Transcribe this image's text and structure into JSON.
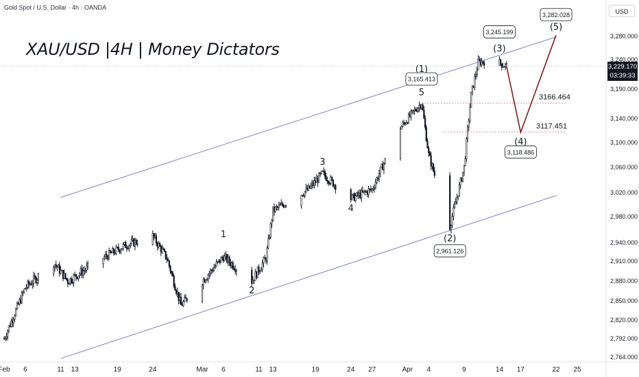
{
  "header": {
    "symbol_line": "Gold Spot / U.S. Dollar · 4h · OANDA",
    "currency_button": "USD"
  },
  "title": "XAU/USD |4H | Money Dictators",
  "current_price": {
    "price": "3,229.170",
    "countdown": "03:39:33"
  },
  "colors": {
    "candle": "#131722",
    "channel": "#7b83c7",
    "projection": "#7a1f1f",
    "level": "#e06060",
    "axis_text": "#131722"
  },
  "chart_data": {
    "type": "candlestick",
    "title": "XAU/USD |4H | Money Dictators",
    "xlabel": "",
    "ylabel": "",
    "x_tick_labels": [
      "Feb",
      "6",
      "11",
      "13",
      "19",
      "24",
      "Mar",
      "6",
      "11",
      "13",
      "19",
      "24",
      "27",
      "Apr",
      "4",
      "9",
      "14",
      "17",
      "22",
      "25"
    ],
    "y_tick_labels": [
      "3,280.000",
      "3,240.000",
      "3,190.000",
      "3,140.000",
      "3,100.000",
      "3,060.000",
      "3,020.000",
      "2,980.000",
      "2,940.000",
      "2,910.000",
      "2,880.000",
      "2,850.000",
      "2,820.000",
      "2,792.000",
      "2,764.000"
    ],
    "close_path": [
      {
        "date": "2025-02-03",
        "price": 2792
      },
      {
        "date": "2025-02-06",
        "price": 2870
      },
      {
        "date": "2025-02-10",
        "price": 2908
      },
      {
        "date": "2025-02-12",
        "price": 2880
      },
      {
        "date": "2025-02-17",
        "price": 2915
      },
      {
        "date": "2025-02-20",
        "price": 2935
      },
      {
        "date": "2025-02-24",
        "price": 2950
      },
      {
        "date": "2025-02-26",
        "price": 2915
      },
      {
        "date": "2025-02-28",
        "price": 2843
      },
      {
        "date": "2025-03-03",
        "price": 2880
      },
      {
        "date": "2025-03-06",
        "price": 2917
      },
      {
        "date": "2025-03-10",
        "price": 2880
      },
      {
        "date": "2025-03-12",
        "price": 2915
      },
      {
        "date": "2025-03-13",
        "price": 2990
      },
      {
        "date": "2025-03-18",
        "price": 3025
      },
      {
        "date": "2025-03-20",
        "price": 3050
      },
      {
        "date": "2025-03-24",
        "price": 3010
      },
      {
        "date": "2025-03-27",
        "price": 3025
      },
      {
        "date": "2025-03-31",
        "price": 3125
      },
      {
        "date": "2025-04-03",
        "price": 3167
      },
      {
        "date": "2025-04-04",
        "price": 3080
      },
      {
        "date": "2025-04-07",
        "price": 2965
      },
      {
        "date": "2025-04-09",
        "price": 3060
      },
      {
        "date": "2025-04-10",
        "price": 3180
      },
      {
        "date": "2025-04-11",
        "price": 3235
      },
      {
        "date": "2025-04-13",
        "price": 3240
      },
      {
        "date": "2025-04-15",
        "price": 3229
      }
    ],
    "channel": {
      "upper": [
        {
          "date": "2025-02-11",
          "price": 3012
        },
        {
          "date": "2025-04-22",
          "price": 3279
        }
      ],
      "lower": [
        {
          "date": "2025-02-11",
          "price": 2762
        },
        {
          "date": "2025-04-22",
          "price": 3015
        }
      ]
    },
    "projection": [
      {
        "date": "2025-04-15",
        "price": 3229
      },
      {
        "date": "2025-04-17",
        "price": 3117
      },
      {
        "date": "2025-04-22",
        "price": 3282
      }
    ],
    "levels": [
      {
        "label": "3166.464",
        "price": 3166.464
      },
      {
        "label": "3117.451",
        "price": 3117.451
      }
    ],
    "wave_labels": [
      {
        "text": "1",
        "date": "2025-03-06",
        "price": 2940,
        "anchor": "above"
      },
      {
        "text": "2",
        "date": "2025-03-10",
        "price": 2880,
        "anchor": "below"
      },
      {
        "text": "3",
        "date": "2025-03-20",
        "price": 3055,
        "anchor": "above"
      },
      {
        "text": "4",
        "date": "2025-03-24",
        "price": 3010,
        "anchor": "below"
      },
      {
        "text": "5",
        "date": "2025-04-03",
        "price": 3170,
        "anchor": "above"
      },
      {
        "text": "(1)",
        "date": "2025-04-03",
        "price": 3225,
        "anchor": "center"
      },
      {
        "text": "(2)",
        "date": "2025-04-07",
        "price": 2961,
        "anchor": "below"
      },
      {
        "text": "(3)",
        "date": "2025-04-14",
        "price": 3245,
        "anchor": "above"
      },
      {
        "text": "(4)",
        "date": "2025-04-17",
        "price": 3117,
        "anchor": "below"
      },
      {
        "text": "(5)",
        "date": "2025-04-22",
        "price": 3282,
        "anchor": "above"
      }
    ],
    "price_boxes": [
      {
        "text": "3,165.413",
        "date": "2025-04-03",
        "price": 3165.413
      },
      {
        "text": "3,245.199",
        "date": "2025-04-14",
        "price": 3245.199
      },
      {
        "text": "3,282.028",
        "date": "2025-04-22",
        "price": 3282.028
      },
      {
        "text": "3,118.486",
        "date": "2025-04-17",
        "price": 3118.486
      },
      {
        "text": "2,961.126",
        "date": "2025-04-07",
        "price": 2961.126
      }
    ],
    "current_price_line": 3229.17
  }
}
